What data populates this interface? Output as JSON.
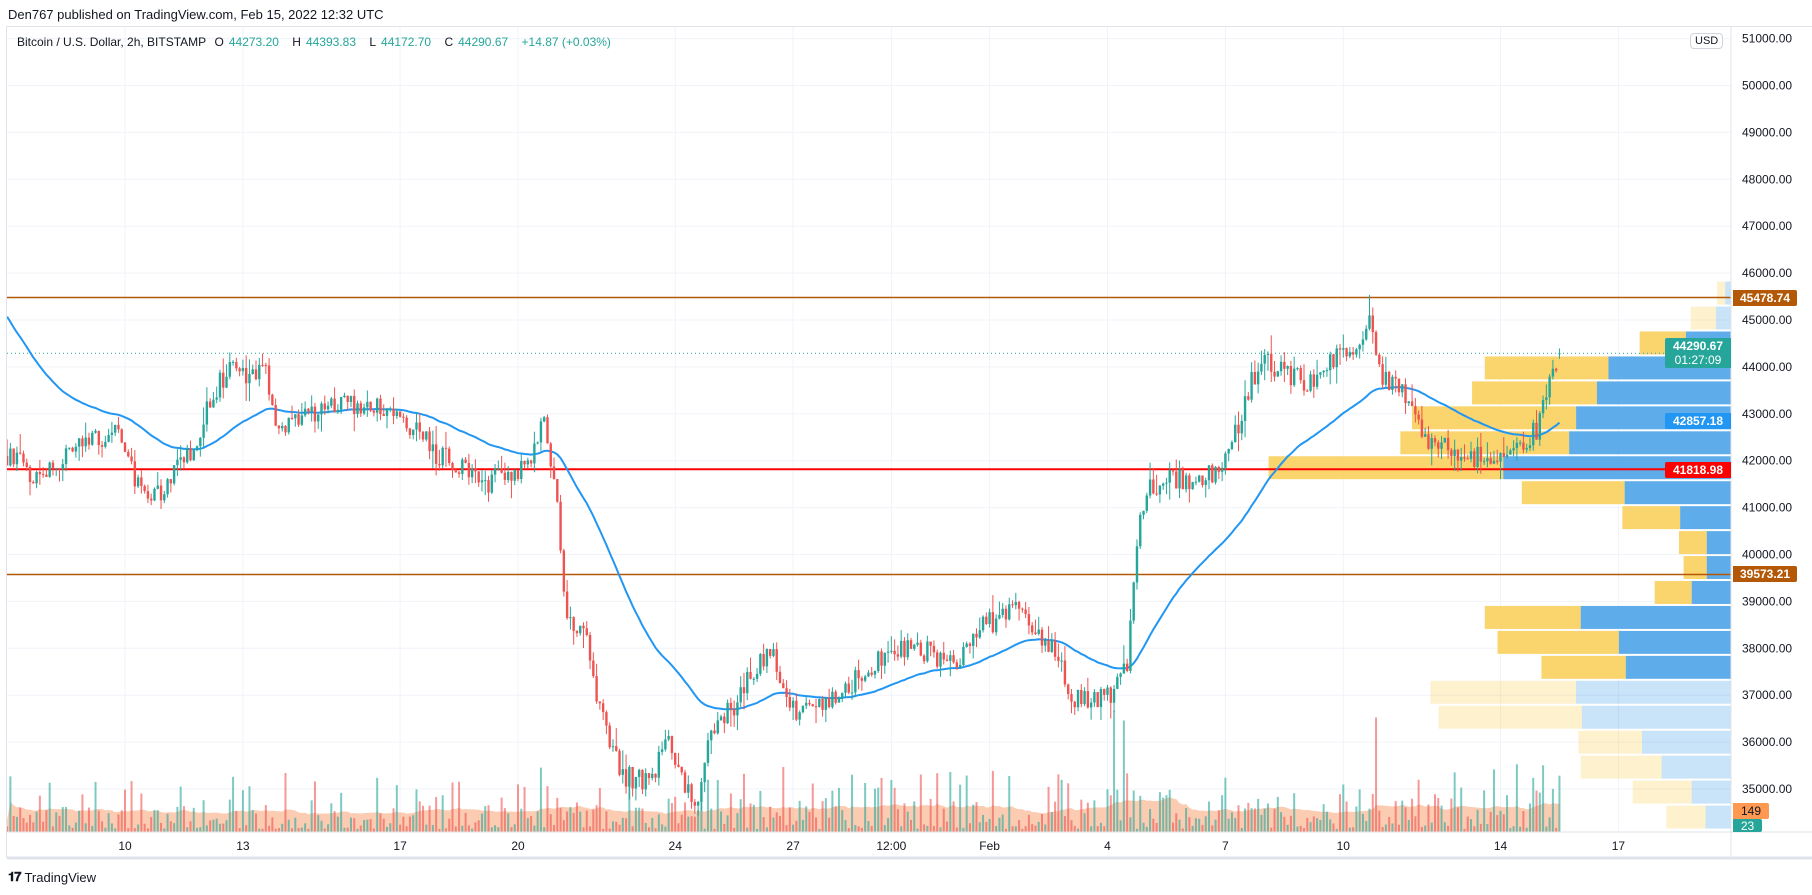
{
  "published": "Den767 published on TradingView.com, Feb 15, 2022 12:32 UTC",
  "legend": {
    "symbol": "Bitcoin / U.S. Dollar, 2h, BITSTAMP",
    "o_label": "O",
    "o": "44273.20",
    "h_label": "H",
    "h": "44393.83",
    "l_label": "L",
    "l": "44172.70",
    "c_label": "C",
    "c": "44290.67",
    "change": "+14.87 (+0.03%)"
  },
  "currency": "USD",
  "footer": {
    "logo": "TV",
    "brand": "TradingView"
  },
  "tags": {
    "res_top": "45478.74",
    "last_price": "44290.67",
    "countdown": "01:27:09",
    "ma_value": "42857.18",
    "support_red": "41818.98",
    "support_low": "39573.21",
    "vol_ma": "149",
    "vol_last": "23"
  },
  "colors": {
    "up": "#26a69a",
    "down": "#ef5350",
    "ma": "#2196f3",
    "level_orange": "#b35806",
    "level_red": "#ff0000",
    "vp_up": "#f9cf5c",
    "vp_down": "#4ca3e8",
    "vol_ma": "#f7a072"
  },
  "chart_data": {
    "type": "candlestick",
    "title": "Bitcoin / U.S. Dollar, 2h, BITSTAMP",
    "y_ticks": [
      51000,
      50000,
      49000,
      48000,
      47000,
      46000,
      45000,
      44000,
      43000,
      42000,
      41000,
      40000,
      39000,
      38000,
      37000,
      36000,
      35000
    ],
    "y_tick_labels": [
      "51000.00",
      "50000.00",
      "49000.00",
      "48000.00",
      "47000.00",
      "46000.00",
      "45000.00",
      "44000.00",
      "43000.00",
      "42000.00",
      "41000.00",
      "40000.00",
      "39000.00",
      "38000.00",
      "37000.00",
      "36000.00",
      "35000.00"
    ],
    "x_ticks": [
      {
        "t": 9,
        "label": "10"
      },
      {
        "t": 12,
        "label": "13"
      },
      {
        "t": 16,
        "label": "17"
      },
      {
        "t": 19,
        "label": "20"
      },
      {
        "t": 23,
        "label": "24"
      },
      {
        "t": 26,
        "label": "27"
      },
      {
        "t": 28.5,
        "label": "12:00"
      },
      {
        "t": 31,
        "label": "Feb"
      },
      {
        "t": 34,
        "label": "4"
      },
      {
        "t": 37,
        "label": "7"
      },
      {
        "t": 40,
        "label": "10"
      },
      {
        "t": 44,
        "label": "14"
      },
      {
        "t": 47,
        "label": "17"
      }
    ],
    "x_unit": "days since Jan 1 2022",
    "price_path": [
      [
        6.0,
        42100
      ],
      [
        6.7,
        41700
      ],
      [
        7.58,
        42100
      ],
      [
        8.76,
        42700
      ],
      [
        9.58,
        41000
      ],
      [
        10.52,
        41970
      ],
      [
        11.55,
        43900
      ],
      [
        12.58,
        43800
      ],
      [
        12.88,
        42700
      ],
      [
        14.64,
        43200
      ],
      [
        15.82,
        43100
      ],
      [
        17.0,
        42100
      ],
      [
        18.17,
        41500
      ],
      [
        19.35,
        41970
      ],
      [
        19.64,
        43200
      ],
      [
        19.94,
        41500
      ],
      [
        20.23,
        38800
      ],
      [
        20.82,
        38000
      ],
      [
        21.11,
        36550
      ],
      [
        21.7,
        35300
      ],
      [
        22.29,
        35100
      ],
      [
        22.88,
        36050
      ],
      [
        23.47,
        34600
      ],
      [
        23.91,
        36050
      ],
      [
        24.64,
        37000
      ],
      [
        25.38,
        38000
      ],
      [
        26.11,
        36550
      ],
      [
        27.0,
        37000
      ],
      [
        28.17,
        37700
      ],
      [
        29.05,
        38150
      ],
      [
        29.94,
        37540
      ],
      [
        30.82,
        38500
      ],
      [
        31.7,
        38800
      ],
      [
        32.58,
        38000
      ],
      [
        33.17,
        36900
      ],
      [
        34.05,
        37000
      ],
      [
        34.5,
        37700
      ],
      [
        34.79,
        40500
      ],
      [
        35.08,
        41500
      ],
      [
        36.7,
        41700
      ],
      [
        37.29,
        42700
      ],
      [
        37.88,
        44200
      ],
      [
        38.46,
        43900
      ],
      [
        39.05,
        43700
      ],
      [
        39.93,
        44200
      ],
      [
        40.67,
        44900
      ],
      [
        40.96,
        43700
      ],
      [
        41.55,
        43450
      ],
      [
        42.14,
        42500
      ],
      [
        42.87,
        42200
      ],
      [
        44.05,
        41970
      ],
      [
        44.93,
        42700
      ],
      [
        45.38,
        44100
      ],
      [
        45.52,
        44290.67
      ]
    ],
    "ma": {
      "type": "EMA",
      "period": 50,
      "start": 45200
    },
    "levels": [
      {
        "price": 45478.74,
        "color": "level_orange"
      },
      {
        "price": 41818.98,
        "color": "level_red"
      },
      {
        "price": 39573.21,
        "color": "level_orange"
      }
    ],
    "last_price": 44290.67,
    "volume_profile": {
      "top_price": 45840,
      "bin_size": 532,
      "rows": [
        {
          "up": 7,
          "down": 5,
          "va": false
        },
        {
          "up": 22,
          "down": 13,
          "va": false
        },
        {
          "up": 40,
          "down": 39,
          "va": true
        },
        {
          "up": 107,
          "down": 106,
          "va": true
        },
        {
          "up": 108,
          "down": 116,
          "va": true
        },
        {
          "up": 142,
          "down": 134,
          "va": true
        },
        {
          "up": 146,
          "down": 140,
          "va": true
        },
        {
          "up": 203,
          "down": 197,
          "va": true
        },
        {
          "up": 89,
          "down": 92,
          "va": true
        },
        {
          "up": 50,
          "down": 44,
          "va": true
        },
        {
          "up": 24,
          "down": 21,
          "va": true
        },
        {
          "up": 20,
          "down": 21,
          "va": true
        },
        {
          "up": 32,
          "down": 34,
          "va": true
        },
        {
          "up": 83,
          "down": 130,
          "va": true
        },
        {
          "up": 105,
          "down": 97,
          "va": true
        },
        {
          "up": 73,
          "down": 91,
          "va": true
        },
        {
          "up": 126,
          "down": 134,
          "va": false
        },
        {
          "up": 124,
          "down": 129,
          "va": false
        },
        {
          "up": 55,
          "down": 77,
          "va": false
        },
        {
          "up": 70,
          "down": 60,
          "va": false
        },
        {
          "up": 51,
          "down": 34,
          "va": false
        },
        {
          "up": 34,
          "down": 22,
          "va": false
        }
      ]
    }
  }
}
